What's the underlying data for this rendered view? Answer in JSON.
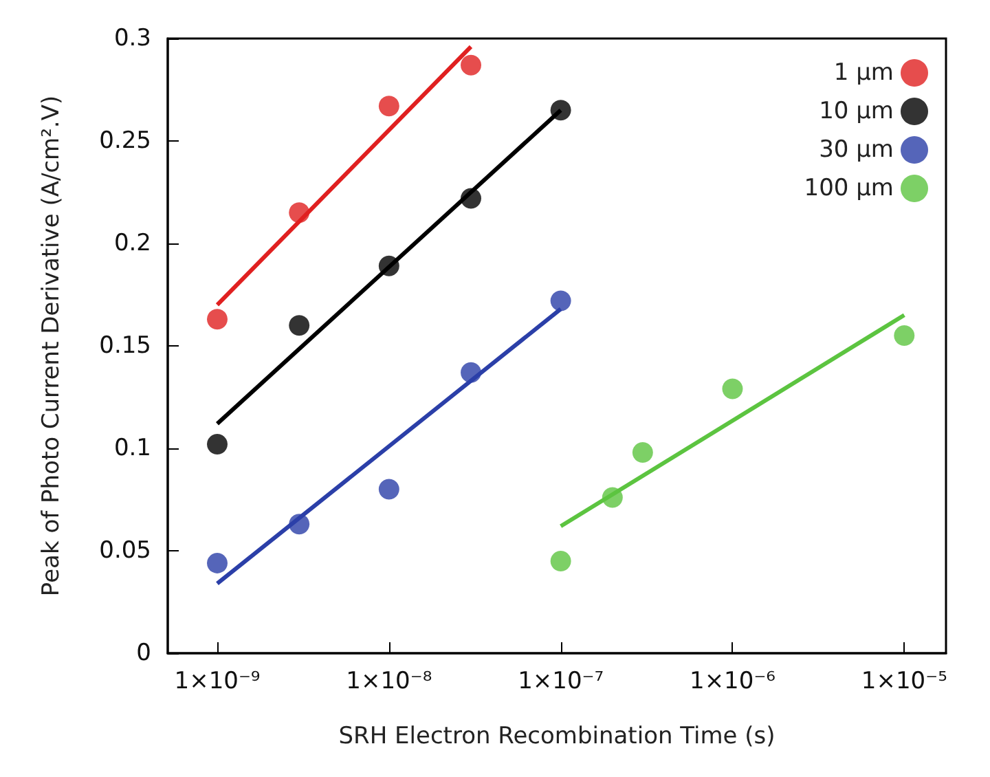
{
  "chart_data": {
    "type": "scatter",
    "xlabel": "SRH Electron Recombination Time (s)",
    "ylabel": "Peak of Photo Current Derivative (A/cm².V)",
    "log": "x",
    "grid": false,
    "legend": "top right",
    "marker": "circle",
    "xlim": [
      5.15e-10,
      1.75e-05
    ],
    "xticks": [
      {
        "value": 1e-09,
        "label": "1×10⁻⁹"
      },
      {
        "value": 1e-08,
        "label": "1×10⁻⁸"
      },
      {
        "value": 1e-07,
        "label": "1×10⁻⁷"
      },
      {
        "value": 1e-06,
        "label": "1×10⁻⁶"
      },
      {
        "value": 1e-05,
        "label": "1×10⁻⁵"
      }
    ],
    "ylim": [
      0,
      0.3
    ],
    "yticks": [
      0,
      0.05,
      0.1,
      0.15,
      0.2,
      0.25,
      0.3
    ],
    "series": [
      {
        "name": "1 µm",
        "color": "#e02020",
        "x": [
          1e-09,
          3e-09,
          1e-08,
          3e-08
        ],
        "values": [
          0.163,
          0.215,
          0.267,
          0.287
        ]
      },
      {
        "name": "10 µm",
        "color": "#000000",
        "x": [
          1e-09,
          3e-09,
          1e-08,
          3e-08,
          1e-07
        ],
        "values": [
          0.102,
          0.16,
          0.189,
          0.222,
          0.265
        ]
      },
      {
        "name": "30 µm",
        "color": "#2b3fa8",
        "x": [
          1e-09,
          3e-09,
          1e-08,
          3e-08,
          1e-07
        ],
        "values": [
          0.044,
          0.063,
          0.08,
          0.137,
          0.172
        ]
      },
      {
        "name": "100 µm",
        "color": "#5cc440",
        "x": [
          1e-07,
          2e-07,
          3e-07,
          1e-06,
          1e-05
        ],
        "values": [
          0.045,
          0.076,
          0.098,
          0.129,
          0.155
        ]
      },
      {
        "type": "line",
        "marker": "none",
        "color": "#e02020",
        "x": [
          1e-09,
          3e-08
        ],
        "values": [
          0.17,
          0.296
        ]
      },
      {
        "type": "line",
        "marker": "none",
        "color": "#000000",
        "x": [
          1e-09,
          1e-07
        ],
        "values": [
          0.112,
          0.265
        ]
      },
      {
        "type": "line",
        "marker": "none",
        "color": "#2b3fa8",
        "x": [
          1e-09,
          1e-07
        ],
        "values": [
          0.034,
          0.168
        ]
      },
      {
        "type": "line",
        "marker": "none",
        "color": "#5cc440",
        "x": [
          1e-07,
          1e-05
        ],
        "values": [
          0.062,
          0.165
        ]
      }
    ]
  }
}
